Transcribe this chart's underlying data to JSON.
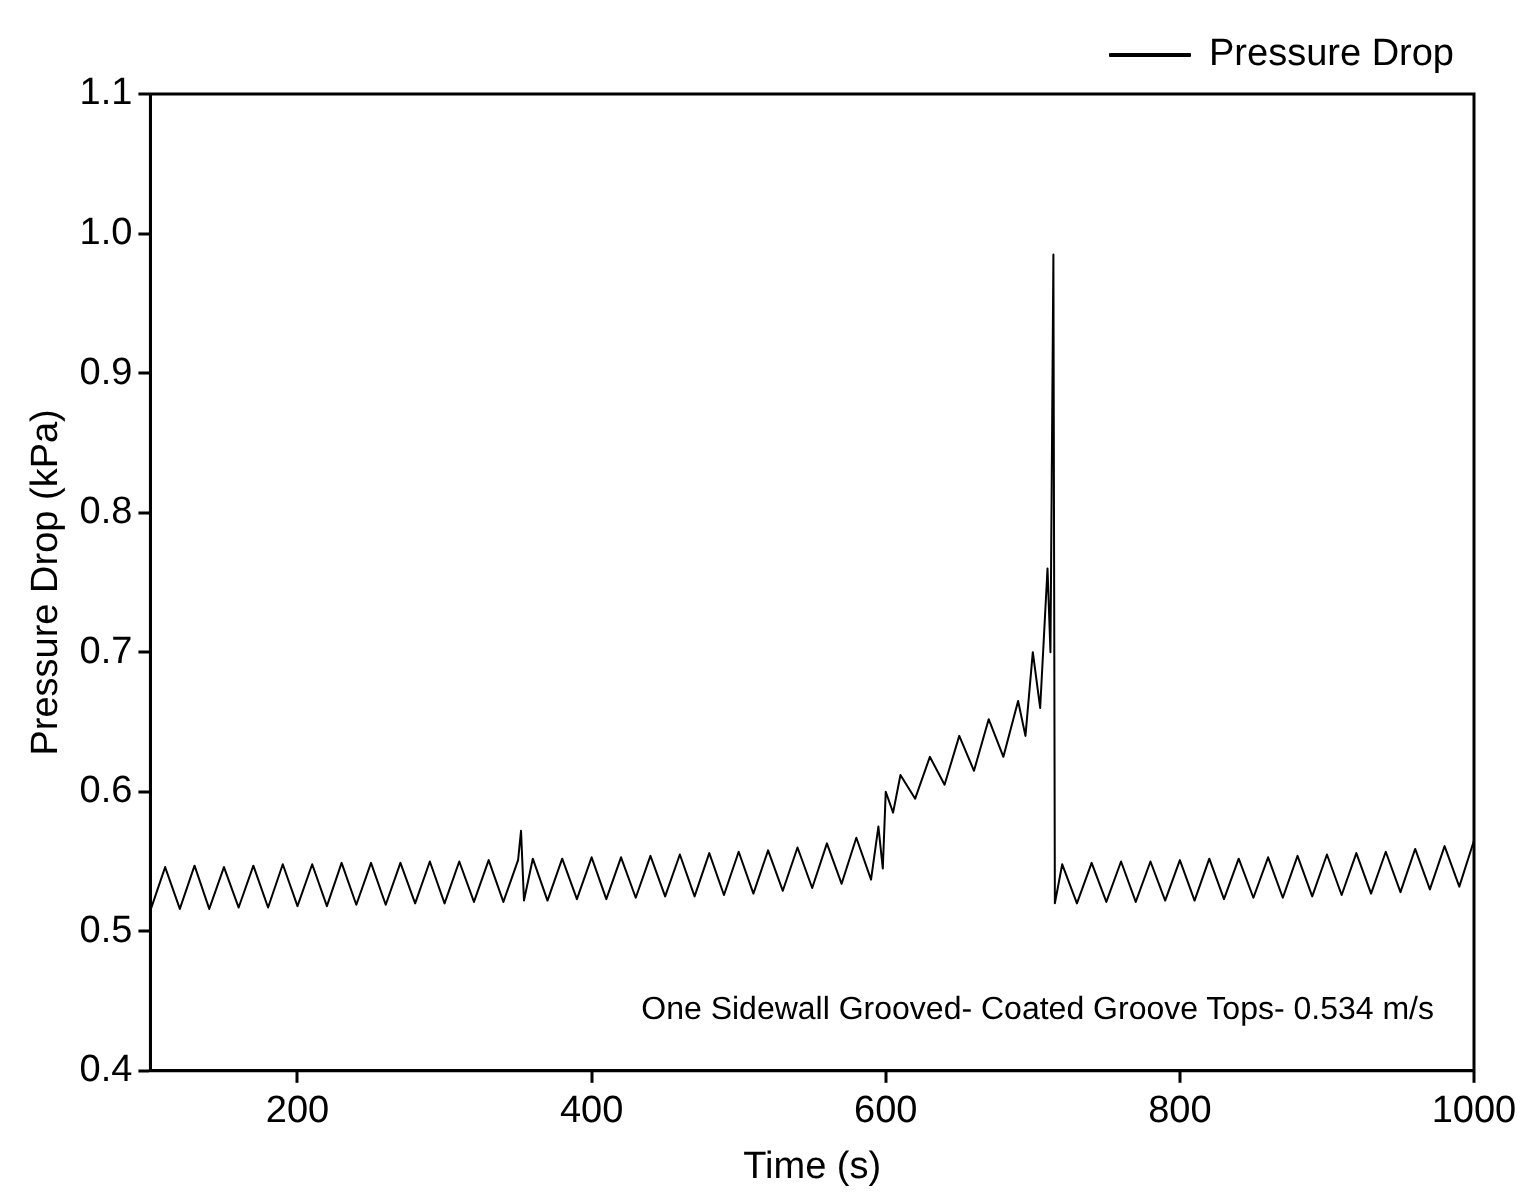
{
  "chart_data": {
    "type": "line",
    "xlabel": "Time (s)",
    "ylabel": "Pressure Drop (kPa)",
    "xlim": [
      100,
      1000
    ],
    "xticks": [
      200,
      400,
      600,
      800,
      1000
    ],
    "ylim": [
      0.4,
      1.1
    ],
    "yticks": [
      0.4,
      0.5,
      0.6,
      0.7,
      0.8,
      0.9,
      {
        "value": 1,
        "label": "1.0"
      },
      1.1
    ],
    "grid": false,
    "legend": "top right",
    "marker": "none",
    "line_style": "solid",
    "annotations": [
      "One Sidewall Grooved- Coated Groove Tops- 0.534 m/s"
    ],
    "x": [
      100,
      110,
      120,
      130,
      140,
      150,
      160,
      170,
      180,
      190,
      200,
      210,
      220,
      230,
      240,
      250,
      260,
      270,
      280,
      290,
      300,
      310,
      320,
      330,
      340,
      350,
      352,
      354,
      360,
      370,
      380,
      390,
      400,
      410,
      420,
      430,
      440,
      450,
      460,
      470,
      480,
      490,
      500,
      510,
      520,
      530,
      540,
      550,
      560,
      570,
      580,
      590,
      595,
      598,
      600,
      605,
      610,
      620,
      630,
      640,
      650,
      660,
      670,
      680,
      690,
      695,
      700,
      705,
      710,
      712,
      714,
      715,
      720,
      730,
      740,
      750,
      760,
      770,
      780,
      790,
      800,
      810,
      820,
      830,
      840,
      850,
      860,
      870,
      880,
      890,
      900,
      910,
      920,
      930,
      940,
      950,
      960,
      970,
      980,
      990,
      1000
    ],
    "series": [
      {
        "name": "Pressure Drop",
        "color": "#000000",
        "values": [
          0.515,
          0.546,
          0.516,
          0.547,
          0.516,
          0.546,
          0.517,
          0.547,
          0.517,
          0.548,
          0.518,
          0.548,
          0.518,
          0.549,
          0.519,
          0.549,
          0.519,
          0.549,
          0.52,
          0.55,
          0.52,
          0.55,
          0.521,
          0.551,
          0.521,
          0.551,
          0.572,
          0.522,
          0.552,
          0.522,
          0.552,
          0.523,
          0.553,
          0.523,
          0.553,
          0.524,
          0.554,
          0.525,
          0.555,
          0.525,
          0.556,
          0.526,
          0.557,
          0.527,
          0.558,
          0.529,
          0.56,
          0.531,
          0.563,
          0.534,
          0.567,
          0.537,
          0.575,
          0.545,
          0.6,
          0.585,
          0.612,
          0.595,
          0.625,
          0.605,
          0.64,
          0.615,
          0.652,
          0.625,
          0.665,
          0.64,
          0.7,
          0.66,
          0.76,
          0.7,
          0.985,
          0.52,
          0.548,
          0.52,
          0.549,
          0.521,
          0.55,
          0.521,
          0.55,
          0.522,
          0.551,
          0.522,
          0.552,
          0.523,
          0.552,
          0.524,
          0.553,
          0.524,
          0.554,
          0.525,
          0.555,
          0.526,
          0.556,
          0.527,
          0.557,
          0.528,
          0.559,
          0.53,
          0.561,
          0.532,
          0.565
        ]
      }
    ]
  }
}
